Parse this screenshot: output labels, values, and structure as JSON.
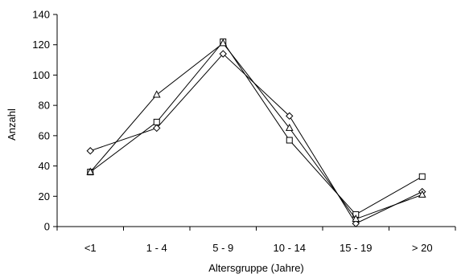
{
  "chart_data": {
    "type": "line",
    "title": "",
    "xlabel": "Altersgruppe (Jahre)",
    "ylabel": "Anzahl",
    "categories": [
      "<1",
      "1 - 4",
      "5 - 9",
      "10 - 14",
      "15 - 19",
      "> 20"
    ],
    "ylim": [
      0,
      140
    ],
    "yticks": [
      0,
      20,
      40,
      60,
      80,
      100,
      120,
      140
    ],
    "grid": false,
    "legend": "none",
    "series": [
      {
        "marker": "diamond",
        "values": [
          50,
          65,
          114,
          73,
          2,
          23
        ]
      },
      {
        "marker": "square",
        "values": [
          36,
          69,
          122,
          57,
          8,
          33
        ]
      },
      {
        "marker": "triangle",
        "values": [
          36,
          87,
          121,
          65,
          5,
          21
        ]
      }
    ],
    "colors": {
      "line": "#000000",
      "marker_fill": "#ffffff",
      "background": "#ffffff"
    }
  }
}
